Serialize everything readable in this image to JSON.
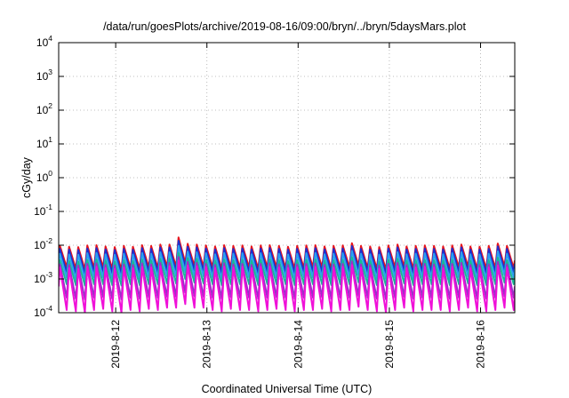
{
  "chart_data": {
    "type": "line",
    "title": "/data/run/goesPlots/archive/2019-08-16/09:00/bryn/../bryn/5daysMars.plot",
    "xlabel": "Coordinated Universal Time (UTC)",
    "ylabel": "cGy/day",
    "yscale": "log",
    "ylim": [
      0.0001,
      10000
    ],
    "y_ticks": [
      {
        "base": "10",
        "exp": "-4",
        "value": 0.0001
      },
      {
        "base": "10",
        "exp": "-3",
        "value": 0.001
      },
      {
        "base": "10",
        "exp": "-2",
        "value": 0.01
      },
      {
        "base": "10",
        "exp": "-1",
        "value": 0.1
      },
      {
        "base": "10",
        "exp": "0",
        "value": 1
      },
      {
        "base": "10",
        "exp": "1",
        "value": 10
      },
      {
        "base": "10",
        "exp": "2",
        "value": 100
      },
      {
        "base": "10",
        "exp": "3",
        "value": 1000
      },
      {
        "base": "10",
        "exp": "4",
        "value": 10000
      }
    ],
    "xlim": [
      "2019-08-11T09:00",
      "2019-08-16T09:00"
    ],
    "x_ticks": [
      {
        "label": "2019-8-12",
        "value": "2019-08-12T00:00"
      },
      {
        "label": "2019-8-13",
        "value": "2019-08-13T00:00"
      },
      {
        "label": "2019-8-14",
        "value": "2019-08-14T00:00"
      },
      {
        "label": "2019-8-15",
        "value": "2019-08-15T00:00"
      },
      {
        "label": "2019-8-16",
        "value": "2019-08-16T00:00"
      }
    ],
    "grid": true,
    "legend": "none",
    "series": [
      {
        "color": "#e8141c",
        "peaks": [
          0.0095,
          0.009,
          0.0088,
          0.0098,
          0.01,
          0.0092,
          0.0088,
          0.0095,
          0.009,
          0.01,
          0.0095,
          0.0105,
          0.0105,
          0.017,
          0.011,
          0.0105,
          0.0098,
          0.0092,
          0.01,
          0.0095,
          0.0098,
          0.0092,
          0.0098,
          0.01,
          0.0095,
          0.009,
          0.0095,
          0.0098,
          0.01,
          0.0092,
          0.0095,
          0.0098,
          0.0115,
          0.0095,
          0.0092,
          0.0088,
          0.0098,
          0.0105,
          0.0092,
          0.0095,
          0.0098,
          0.0095,
          0.0092,
          0.0098,
          0.0105,
          0.0092,
          0.009,
          0.0095,
          0.0112,
          0.0095
        ],
        "troughs": [
          0.0022,
          0.002,
          0.0019,
          0.0021,
          0.0022,
          0.002,
          0.0019,
          0.0021,
          0.002,
          0.0022,
          0.0021,
          0.0023,
          0.0023,
          0.003,
          0.0024,
          0.0023,
          0.0022,
          0.002,
          0.0022,
          0.0021,
          0.0022,
          0.002,
          0.0022,
          0.0022,
          0.0021,
          0.002,
          0.0021,
          0.0022,
          0.0022,
          0.002,
          0.0021,
          0.0022,
          0.0025,
          0.0021,
          0.002,
          0.0019,
          0.0022,
          0.0023,
          0.002,
          0.0021,
          0.0022,
          0.0021,
          0.002,
          0.0022,
          0.0023,
          0.002,
          0.002,
          0.0021,
          0.0024,
          0.0021
        ],
        "start": 0.004,
        "end": 0.0035
      },
      {
        "color": "#1c2fcf",
        "peaks": [
          0.0078,
          0.0074,
          0.0072,
          0.008,
          0.0082,
          0.0075,
          0.0072,
          0.0078,
          0.0074,
          0.0082,
          0.0078,
          0.0086,
          0.0086,
          0.0135,
          0.009,
          0.0086,
          0.008,
          0.0075,
          0.0082,
          0.0078,
          0.008,
          0.0075,
          0.008,
          0.0082,
          0.0078,
          0.0074,
          0.0078,
          0.008,
          0.0082,
          0.0075,
          0.0078,
          0.008,
          0.0094,
          0.0078,
          0.0075,
          0.0072,
          0.008,
          0.0086,
          0.0075,
          0.0078,
          0.008,
          0.0078,
          0.0075,
          0.008,
          0.0086,
          0.0075,
          0.0074,
          0.0078,
          0.0092,
          0.0078
        ],
        "troughs": [
          0.0016,
          0.0015,
          0.0014,
          0.0016,
          0.0016,
          0.0015,
          0.0014,
          0.0016,
          0.0015,
          0.0016,
          0.0016,
          0.0017,
          0.0017,
          0.0023,
          0.0018,
          0.0017,
          0.0016,
          0.0015,
          0.0016,
          0.0016,
          0.0016,
          0.0015,
          0.0016,
          0.0016,
          0.0016,
          0.0015,
          0.0016,
          0.0016,
          0.0016,
          0.0015,
          0.0016,
          0.0016,
          0.0019,
          0.0016,
          0.0015,
          0.0014,
          0.0016,
          0.0017,
          0.0015,
          0.0016,
          0.0016,
          0.0016,
          0.0015,
          0.0016,
          0.0017,
          0.0015,
          0.0015,
          0.0016,
          0.0018,
          0.0016
        ],
        "start": 0.0033,
        "end": 0.0028
      },
      {
        "color": "#2aa0f0",
        "peaks": [
          0.0056,
          0.0053,
          0.0052,
          0.0058,
          0.0059,
          0.0054,
          0.0052,
          0.0056,
          0.0053,
          0.0059,
          0.0056,
          0.0062,
          0.0062,
          0.0095,
          0.0065,
          0.0062,
          0.0058,
          0.0054,
          0.0059,
          0.0056,
          0.0058,
          0.0054,
          0.0058,
          0.0059,
          0.0056,
          0.0053,
          0.0056,
          0.0058,
          0.0059,
          0.0054,
          0.0056,
          0.0058,
          0.0068,
          0.0056,
          0.0054,
          0.0052,
          0.0058,
          0.0062,
          0.0054,
          0.0056,
          0.0058,
          0.0056,
          0.0054,
          0.0058,
          0.0062,
          0.0054,
          0.0053,
          0.0056,
          0.0066,
          0.0056
        ],
        "troughs": [
          0.0011,
          0.001,
          0.001,
          0.0011,
          0.0011,
          0.001,
          0.001,
          0.0011,
          0.001,
          0.0011,
          0.0011,
          0.0012,
          0.0012,
          0.0016,
          0.0012,
          0.0012,
          0.0011,
          0.001,
          0.0011,
          0.0011,
          0.0011,
          0.001,
          0.0011,
          0.0011,
          0.0011,
          0.001,
          0.0011,
          0.0011,
          0.0011,
          0.001,
          0.0011,
          0.0011,
          0.0013,
          0.0011,
          0.001,
          0.001,
          0.0011,
          0.0012,
          0.001,
          0.0011,
          0.0011,
          0.0011,
          0.001,
          0.0011,
          0.0012,
          0.001,
          0.001,
          0.0011,
          0.0013,
          0.0011
        ],
        "start": 0.0025,
        "end": 0.002
      },
      {
        "color": "#18b896",
        "peaks": [
          0.0036,
          0.0034,
          0.0033,
          0.0037,
          0.0038,
          0.0035,
          0.0033,
          0.0036,
          0.0034,
          0.0038,
          0.0036,
          0.004,
          0.004,
          0.006,
          0.0042,
          0.004,
          0.0037,
          0.0035,
          0.0038,
          0.0036,
          0.0037,
          0.0035,
          0.0037,
          0.0038,
          0.0036,
          0.0034,
          0.0036,
          0.0037,
          0.0038,
          0.0035,
          0.0036,
          0.0037,
          0.0044,
          0.0036,
          0.0035,
          0.0033,
          0.0037,
          0.004,
          0.0035,
          0.0036,
          0.0037,
          0.0036,
          0.0035,
          0.0037,
          0.004,
          0.0035,
          0.0034,
          0.0036,
          0.0043,
          0.0036
        ],
        "troughs": [
          0.0007,
          0.00066,
          0.00064,
          0.0007,
          0.0007,
          0.00066,
          0.00064,
          0.0007,
          0.00066,
          0.0007,
          0.0007,
          0.00074,
          0.00074,
          0.001,
          0.00078,
          0.00074,
          0.0007,
          0.00066,
          0.0007,
          0.0007,
          0.0007,
          0.00066,
          0.0007,
          0.0007,
          0.0007,
          0.00066,
          0.0007,
          0.0007,
          0.0007,
          0.00066,
          0.0007,
          0.0007,
          0.0008,
          0.0007,
          0.00066,
          0.00064,
          0.0007,
          0.00074,
          0.00066,
          0.0007,
          0.0007,
          0.0007,
          0.00066,
          0.0007,
          0.00074,
          0.00066,
          0.00066,
          0.0007,
          0.00078,
          0.0007
        ],
        "start": 0.0015,
        "end": 0.0012
      },
      {
        "color": "#9a30c8",
        "peaks": [
          0.0027,
          0.0026,
          0.0025,
          0.0028,
          0.0029,
          0.0026,
          0.0025,
          0.0027,
          0.0026,
          0.0029,
          0.0027,
          0.003,
          0.003,
          0.0045,
          0.0032,
          0.003,
          0.0028,
          0.0026,
          0.0029,
          0.0027,
          0.0028,
          0.0026,
          0.0028,
          0.0029,
          0.0027,
          0.0026,
          0.0027,
          0.0028,
          0.0029,
          0.0026,
          0.0027,
          0.0028,
          0.0033,
          0.0027,
          0.0026,
          0.0025,
          0.0028,
          0.003,
          0.0026,
          0.0027,
          0.0028,
          0.0027,
          0.0026,
          0.0028,
          0.003,
          0.0026,
          0.0026,
          0.0027,
          0.0032,
          0.0027
        ],
        "troughs": [
          0.00028,
          0.00026,
          0.00025,
          0.00028,
          0.00029,
          0.00026,
          0.00025,
          0.00028,
          0.00026,
          0.00029,
          0.00028,
          0.0003,
          0.0003,
          0.0004,
          0.00031,
          0.0003,
          0.00028,
          0.00026,
          0.00029,
          0.00028,
          0.00028,
          0.00026,
          0.00028,
          0.00029,
          0.00028,
          0.00026,
          0.00028,
          0.00028,
          0.00029,
          0.00026,
          0.00028,
          0.00028,
          0.00032,
          0.00028,
          0.00026,
          0.00025,
          0.00028,
          0.0003,
          0.00026,
          0.00028,
          0.00028,
          0.00028,
          0.00026,
          0.00028,
          0.0003,
          0.00026,
          0.00026,
          0.00028,
          0.00031,
          0.00028
        ],
        "start": 0.0008,
        "end": 0.0006
      },
      {
        "color": "#f010d8",
        "peaks": [
          0.0022,
          0.0021,
          0.002,
          0.0023,
          0.0023,
          0.0021,
          0.002,
          0.0022,
          0.0021,
          0.0023,
          0.0022,
          0.0024,
          0.0024,
          0.0035,
          0.0025,
          0.0024,
          0.0023,
          0.0021,
          0.0023,
          0.0022,
          0.0023,
          0.0021,
          0.0023,
          0.0023,
          0.0022,
          0.0021,
          0.0022,
          0.0023,
          0.0023,
          0.0021,
          0.0022,
          0.0023,
          0.0026,
          0.0022,
          0.0021,
          0.002,
          0.0023,
          0.0024,
          0.0021,
          0.0022,
          0.0023,
          0.0022,
          0.0021,
          0.0023,
          0.0024,
          0.0021,
          0.0021,
          0.0022,
          0.0025,
          0.0022
        ],
        "troughs": [
          0.00012,
          0.00011,
          0.0001,
          0.00012,
          0.00013,
          0.00011,
          0.0001,
          0.00012,
          0.00011,
          0.00013,
          0.00012,
          0.00014,
          0.00014,
          0.00018,
          0.00014,
          0.00014,
          0.00012,
          0.00011,
          0.00013,
          0.00012,
          0.00012,
          0.00011,
          0.00012,
          0.00013,
          0.00012,
          0.00011,
          0.00012,
          0.00012,
          0.00013,
          0.00011,
          0.00012,
          0.00012,
          0.00015,
          0.00012,
          0.00011,
          0.0001,
          0.00012,
          0.00014,
          0.00011,
          0.00012,
          0.00012,
          0.00012,
          0.00011,
          0.00012,
          0.00014,
          0.00011,
          0.00011,
          0.00012,
          0.00014,
          0.00012
        ],
        "start": 0.0006,
        "end": 0.0004
      }
    ]
  }
}
